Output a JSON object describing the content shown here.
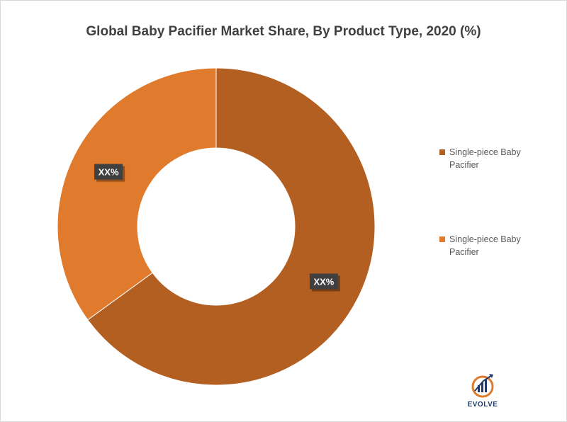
{
  "chart_data": {
    "type": "pie",
    "title": "Global Baby Pacifier Market Share, By Product Type, 2020 (%)",
    "donut": true,
    "slices": [
      {
        "label": "Single-piece Baby Pacifier",
        "value": 65,
        "data_label": "XX%",
        "color": "#b35f22"
      },
      {
        "label": "Single-piece Baby Pacifier",
        "value": 35,
        "data_label": "XX%",
        "color": "#e07b2e"
      }
    ],
    "legend_position": "right"
  },
  "logo": {
    "text": "EVOLVE",
    "icon": "evolve-chart-logo-icon"
  }
}
